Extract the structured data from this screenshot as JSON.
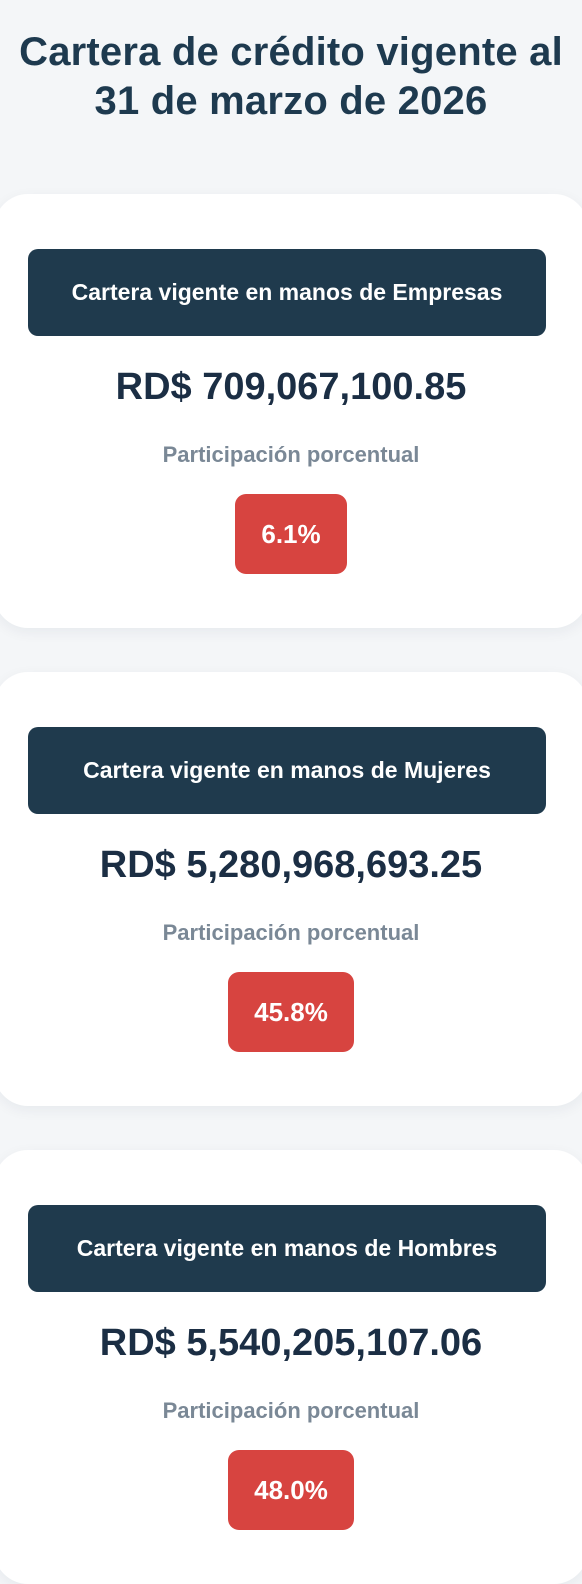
{
  "page": {
    "title": "Cartera de crédito vigente al 31 de marzo de 2026"
  },
  "cards": [
    {
      "header": "Cartera vigente en manos de Empresas",
      "amount": "RD$ 709,067,100.85",
      "share_label": "Participación porcentual",
      "share_value": "6.1%"
    },
    {
      "header": "Cartera vigente en manos de Mujeres",
      "amount": "RD$ 5,280,968,693.25",
      "share_label": "Participación porcentual",
      "share_value": "45.8%"
    },
    {
      "header": "Cartera vigente en manos de Hombres",
      "amount": "RD$ 5,540,205,107.06",
      "share_label": "Participación porcentual",
      "share_value": "48.0%"
    }
  ],
  "colors": {
    "background": "#f4f6f8",
    "card": "#ffffff",
    "header_bg": "#1f3a4d",
    "title_text": "#1e3a4f",
    "amount_text": "#1b2e44",
    "label_text": "#7a8896",
    "badge_bg": "#d74440"
  }
}
